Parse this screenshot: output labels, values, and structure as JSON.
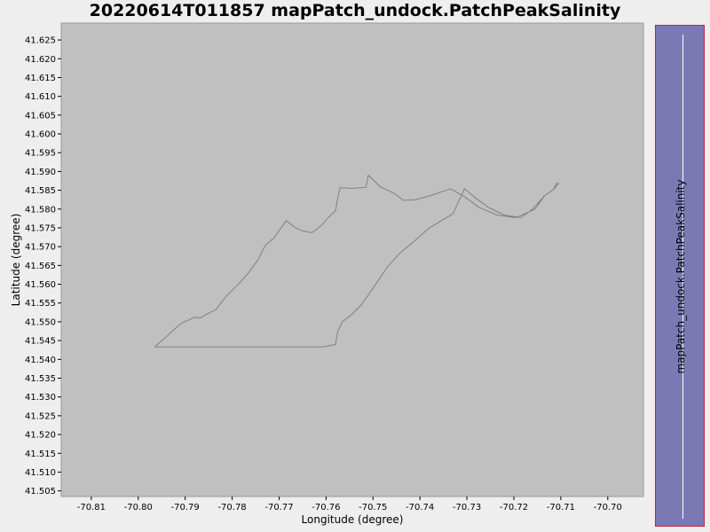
{
  "chart_data": {
    "type": "line",
    "title": "20220614T011857 mapPatch_undock.PatchPeakSalinity",
    "xlabel": "Longitude (degree)",
    "ylabel": "Latitude (degree)",
    "xlim": [
      -70.8164,
      -70.6924
    ],
    "ylim": [
      41.5035,
      41.6295
    ],
    "x_ticks": [
      "-70.81",
      "-70.80",
      "-70.79",
      "-70.78",
      "-70.77",
      "-70.76",
      "-70.75",
      "-70.74",
      "-70.73",
      "-70.72",
      "-70.71",
      "-70.70"
    ],
    "y_ticks": [
      "41.625",
      "41.620",
      "41.615",
      "41.610",
      "41.605",
      "41.600",
      "41.595",
      "41.590",
      "41.585",
      "41.580",
      "41.575",
      "41.570",
      "41.565",
      "41.560",
      "41.555",
      "41.550",
      "41.545",
      "41.540",
      "41.535",
      "41.530",
      "41.525",
      "41.520",
      "41.515",
      "41.510",
      "41.505"
    ],
    "grid": false,
    "plot_background": "#c0c0c0",
    "line_color": "#808080",
    "series": [
      {
        "x": [
          -70.7965,
          -70.7935,
          -70.791,
          -70.788,
          -70.7868,
          -70.7855,
          -70.7835,
          -70.781,
          -70.7785,
          -70.7765,
          -70.7755,
          -70.7745,
          -70.773,
          -70.771,
          -70.7685,
          -70.7665,
          -70.765,
          -70.763,
          -70.761,
          -70.7595,
          -70.758,
          -70.7575,
          -70.757,
          -70.7545,
          -70.7515,
          -70.751,
          -70.7485,
          -70.7455,
          -70.7435,
          -70.741,
          -70.738,
          -70.7335,
          -70.7305,
          -70.7275,
          -70.7235,
          -70.7195,
          -70.7155,
          -70.7135,
          -70.7115,
          -70.7105,
          -70.711,
          -70.7115,
          -70.7135,
          -70.716,
          -70.7185,
          -70.722,
          -70.7255,
          -70.7285,
          -70.7305,
          -70.733,
          -70.738,
          -70.741,
          -70.7445,
          -70.747,
          -70.749,
          -70.7505,
          -70.7525,
          -70.7545,
          -70.7565,
          -70.7575,
          -70.758,
          -70.7605,
          -70.7625,
          -70.7665,
          -70.7695,
          -70.7735,
          -70.7775,
          -70.7815,
          -70.7855,
          -70.7885,
          -70.791,
          -70.7935,
          -70.7965
        ],
        "y": [
          41.5433,
          41.5466,
          41.5495,
          41.5512,
          41.551,
          41.552,
          41.5532,
          41.5572,
          41.5602,
          41.563,
          41.5648,
          41.5665,
          41.5702,
          41.5725,
          41.5769,
          41.575,
          41.5742,
          41.5737,
          41.5756,
          41.5778,
          41.5795,
          41.583,
          41.5857,
          41.5855,
          41.5858,
          41.589,
          41.586,
          41.5842,
          41.5823,
          41.5825,
          41.5835,
          41.5854,
          41.5833,
          41.5805,
          41.5784,
          41.5777,
          41.58,
          41.5835,
          41.5853,
          41.5868,
          41.5868,
          41.5853,
          41.5835,
          41.58,
          41.5777,
          41.5784,
          41.5805,
          41.5833,
          41.5854,
          41.5787,
          41.575,
          41.5717,
          41.568,
          41.5645,
          41.5608,
          41.558,
          41.5545,
          41.552,
          41.55,
          41.5474,
          41.544,
          41.5433,
          41.5433,
          41.5433,
          41.5433,
          41.5433,
          41.5433,
          41.5433,
          41.5433,
          41.5433,
          41.5433,
          41.5433,
          41.5433
        ]
      }
    ]
  },
  "colorbar": {
    "label": "mapPatch_undock.PatchPeakSalinity",
    "fill_color": "#7b79b4",
    "border_color": "#c0283a"
  }
}
